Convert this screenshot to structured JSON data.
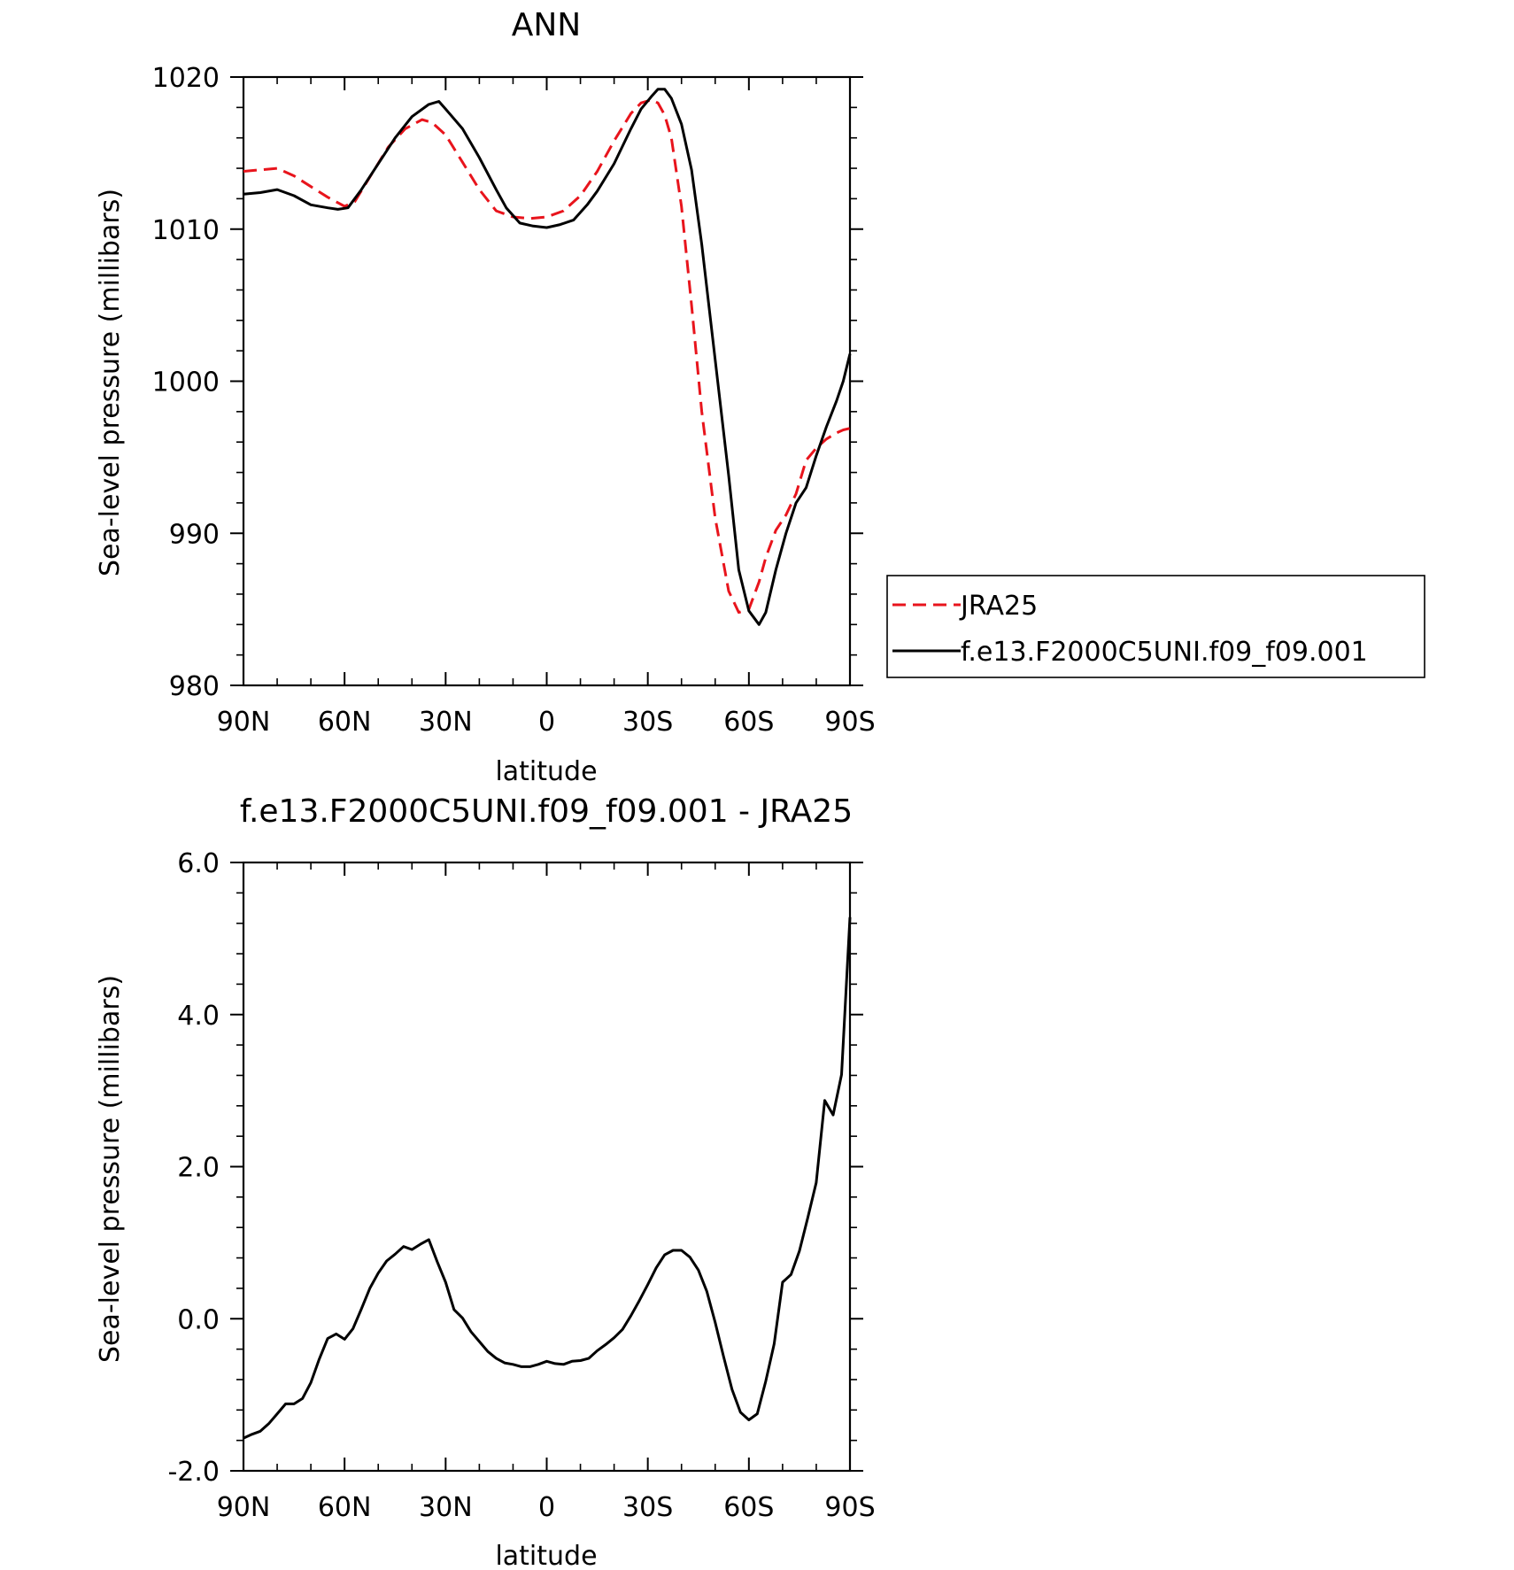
{
  "chart_data": [
    {
      "type": "line",
      "title": "ANN",
      "xlabel": "latitude",
      "ylabel": "Sea-level pressure (millibars)",
      "x_tick_labels": [
        "90N",
        "60N",
        "30N",
        "0",
        "30S",
        "60S",
        "90S"
      ],
      "x_ticks": [
        90,
        60,
        30,
        0,
        -30,
        -60,
        -90
      ],
      "xlim": [
        90,
        -90
      ],
      "y_tick_labels": [
        "980",
        "990",
        "1000",
        "1010",
        "1020"
      ],
      "y_ticks": [
        980,
        990,
        1000,
        1010,
        1020
      ],
      "ylim": [
        980,
        1020
      ],
      "grid": false,
      "legend_placement": "right",
      "series": [
        {
          "name": "JRA25",
          "color": "#e8141c",
          "dash": "dashed",
          "x": [
            90,
            85,
            80,
            75,
            70,
            65,
            60,
            57,
            52,
            47,
            42,
            37,
            34,
            30,
            25,
            20,
            15,
            10,
            5,
            0,
            -5,
            -10,
            -15,
            -20,
            -25,
            -28,
            -31,
            -33,
            -35,
            -37,
            -40,
            -43,
            -46,
            -50,
            -54,
            -57,
            -60,
            -63,
            -65,
            -68,
            -71,
            -74,
            -77,
            -80,
            -83,
            -86,
            -88,
            -90
          ],
          "y": [
            1013.8,
            1013.9,
            1014.0,
            1013.5,
            1012.8,
            1012.1,
            1011.5,
            1011.8,
            1013.6,
            1015.4,
            1016.6,
            1017.2,
            1017.0,
            1016.2,
            1014.4,
            1012.6,
            1011.2,
            1010.8,
            1010.7,
            1010.8,
            1011.2,
            1012.2,
            1013.8,
            1015.8,
            1017.6,
            1018.3,
            1018.5,
            1018.3,
            1017.5,
            1016.0,
            1011.5,
            1005.0,
            998.0,
            991.0,
            986.2,
            984.8,
            985.0,
            986.8,
            988.4,
            990.2,
            991.2,
            992.6,
            994.8,
            995.6,
            996.2,
            996.6,
            996.8,
            996.9
          ]
        },
        {
          "name": "f.e13.F2000C5UNI.f09_f09.001",
          "color": "#000000",
          "dash": "solid",
          "x": [
            90,
            85,
            80,
            75,
            70,
            65,
            62,
            59,
            55,
            50,
            45,
            40,
            35,
            32,
            30,
            25,
            20,
            15,
            12,
            8,
            4,
            0,
            -4,
            -8,
            -12,
            -15,
            -20,
            -25,
            -28,
            -31,
            -33,
            -35,
            -37,
            -40,
            -43,
            -46,
            -50,
            -54,
            -57,
            -60,
            -63,
            -65,
            -68,
            -71,
            -74,
            -77,
            -80,
            -83,
            -86,
            -88,
            -90
          ],
          "y": [
            1012.3,
            1012.4,
            1012.6,
            1012.2,
            1011.6,
            1011.4,
            1011.3,
            1011.4,
            1012.6,
            1014.3,
            1016.0,
            1017.4,
            1018.2,
            1018.4,
            1017.9,
            1016.6,
            1014.7,
            1012.6,
            1011.4,
            1010.4,
            1010.2,
            1010.1,
            1010.3,
            1010.6,
            1011.6,
            1012.5,
            1014.3,
            1016.6,
            1017.9,
            1018.7,
            1019.2,
            1019.2,
            1018.6,
            1016.9,
            1013.9,
            1009.0,
            1001.4,
            993.8,
            987.6,
            984.9,
            984.0,
            984.8,
            987.6,
            990.0,
            992.0,
            993.0,
            995.1,
            997.0,
            998.7,
            1000.0,
            1001.8
          ]
        }
      ]
    },
    {
      "type": "line",
      "title": "f.e13.F2000C5UNI.f09_f09.001 - JRA25",
      "xlabel": "latitude",
      "ylabel": "Sea-level pressure (millibars)",
      "x_tick_labels": [
        "90N",
        "60N",
        "30N",
        "0",
        "30S",
        "60S",
        "90S"
      ],
      "x_ticks": [
        90,
        60,
        30,
        0,
        -30,
        -60,
        -90
      ],
      "xlim": [
        90,
        -90
      ],
      "y_tick_labels": [
        "-2.0",
        "0.0",
        "2.0",
        "4.0",
        "6.0"
      ],
      "y_ticks": [
        -2,
        0,
        2,
        4,
        6
      ],
      "ylim": [
        -2,
        6
      ],
      "grid": false,
      "series": [
        {
          "color": "#000000",
          "dash": "solid",
          "x": [
            90,
            87.5,
            85,
            82.5,
            80,
            77.5,
            75,
            72.5,
            70,
            67.5,
            65,
            62.5,
            60,
            57.5,
            55,
            52.5,
            50,
            47.5,
            45,
            42.5,
            40,
            37.5,
            35,
            32.5,
            30,
            27.5,
            25,
            22.5,
            20,
            17.5,
            15,
            12.5,
            10,
            7.5,
            5,
            2.5,
            0,
            -2.5,
            -5,
            -7.5,
            -10,
            -12.5,
            -15,
            -17.5,
            -20,
            -22.5,
            -25,
            -27.5,
            -30,
            -32.5,
            -35,
            -37.5,
            -40,
            -42.5,
            -45,
            -47.5,
            -50,
            -52.5,
            -55,
            -57.5,
            -60,
            -62.5,
            -65,
            -67.5,
            -70,
            -72.5,
            -75,
            -77.5,
            -80,
            -82.5,
            -85,
            -87.5,
            -90
          ],
          "y": [
            -1.57,
            -1.52,
            -1.48,
            -1.38,
            -1.25,
            -1.12,
            -1.12,
            -1.05,
            -0.84,
            -0.53,
            -0.26,
            -0.2,
            -0.27,
            -0.13,
            0.13,
            0.4,
            0.6,
            0.76,
            0.85,
            0.95,
            0.91,
            0.98,
            1.04,
            0.75,
            0.48,
            0.12,
            0.01,
            -0.17,
            -0.3,
            -0.43,
            -0.52,
            -0.58,
            -0.6,
            -0.63,
            -0.63,
            -0.6,
            -0.56,
            -0.59,
            -0.6,
            -0.56,
            -0.55,
            -0.52,
            -0.42,
            -0.34,
            -0.25,
            -0.14,
            0.04,
            0.24,
            0.45,
            0.67,
            0.84,
            0.9,
            0.9,
            0.81,
            0.64,
            0.36,
            -0.05,
            -0.5,
            -0.93,
            -1.23,
            -1.33,
            -1.25,
            -0.82,
            -0.33,
            0.48,
            0.58,
            0.89,
            1.33,
            1.79,
            2.87,
            2.68,
            3.21,
            5.28
          ]
        }
      ]
    }
  ]
}
